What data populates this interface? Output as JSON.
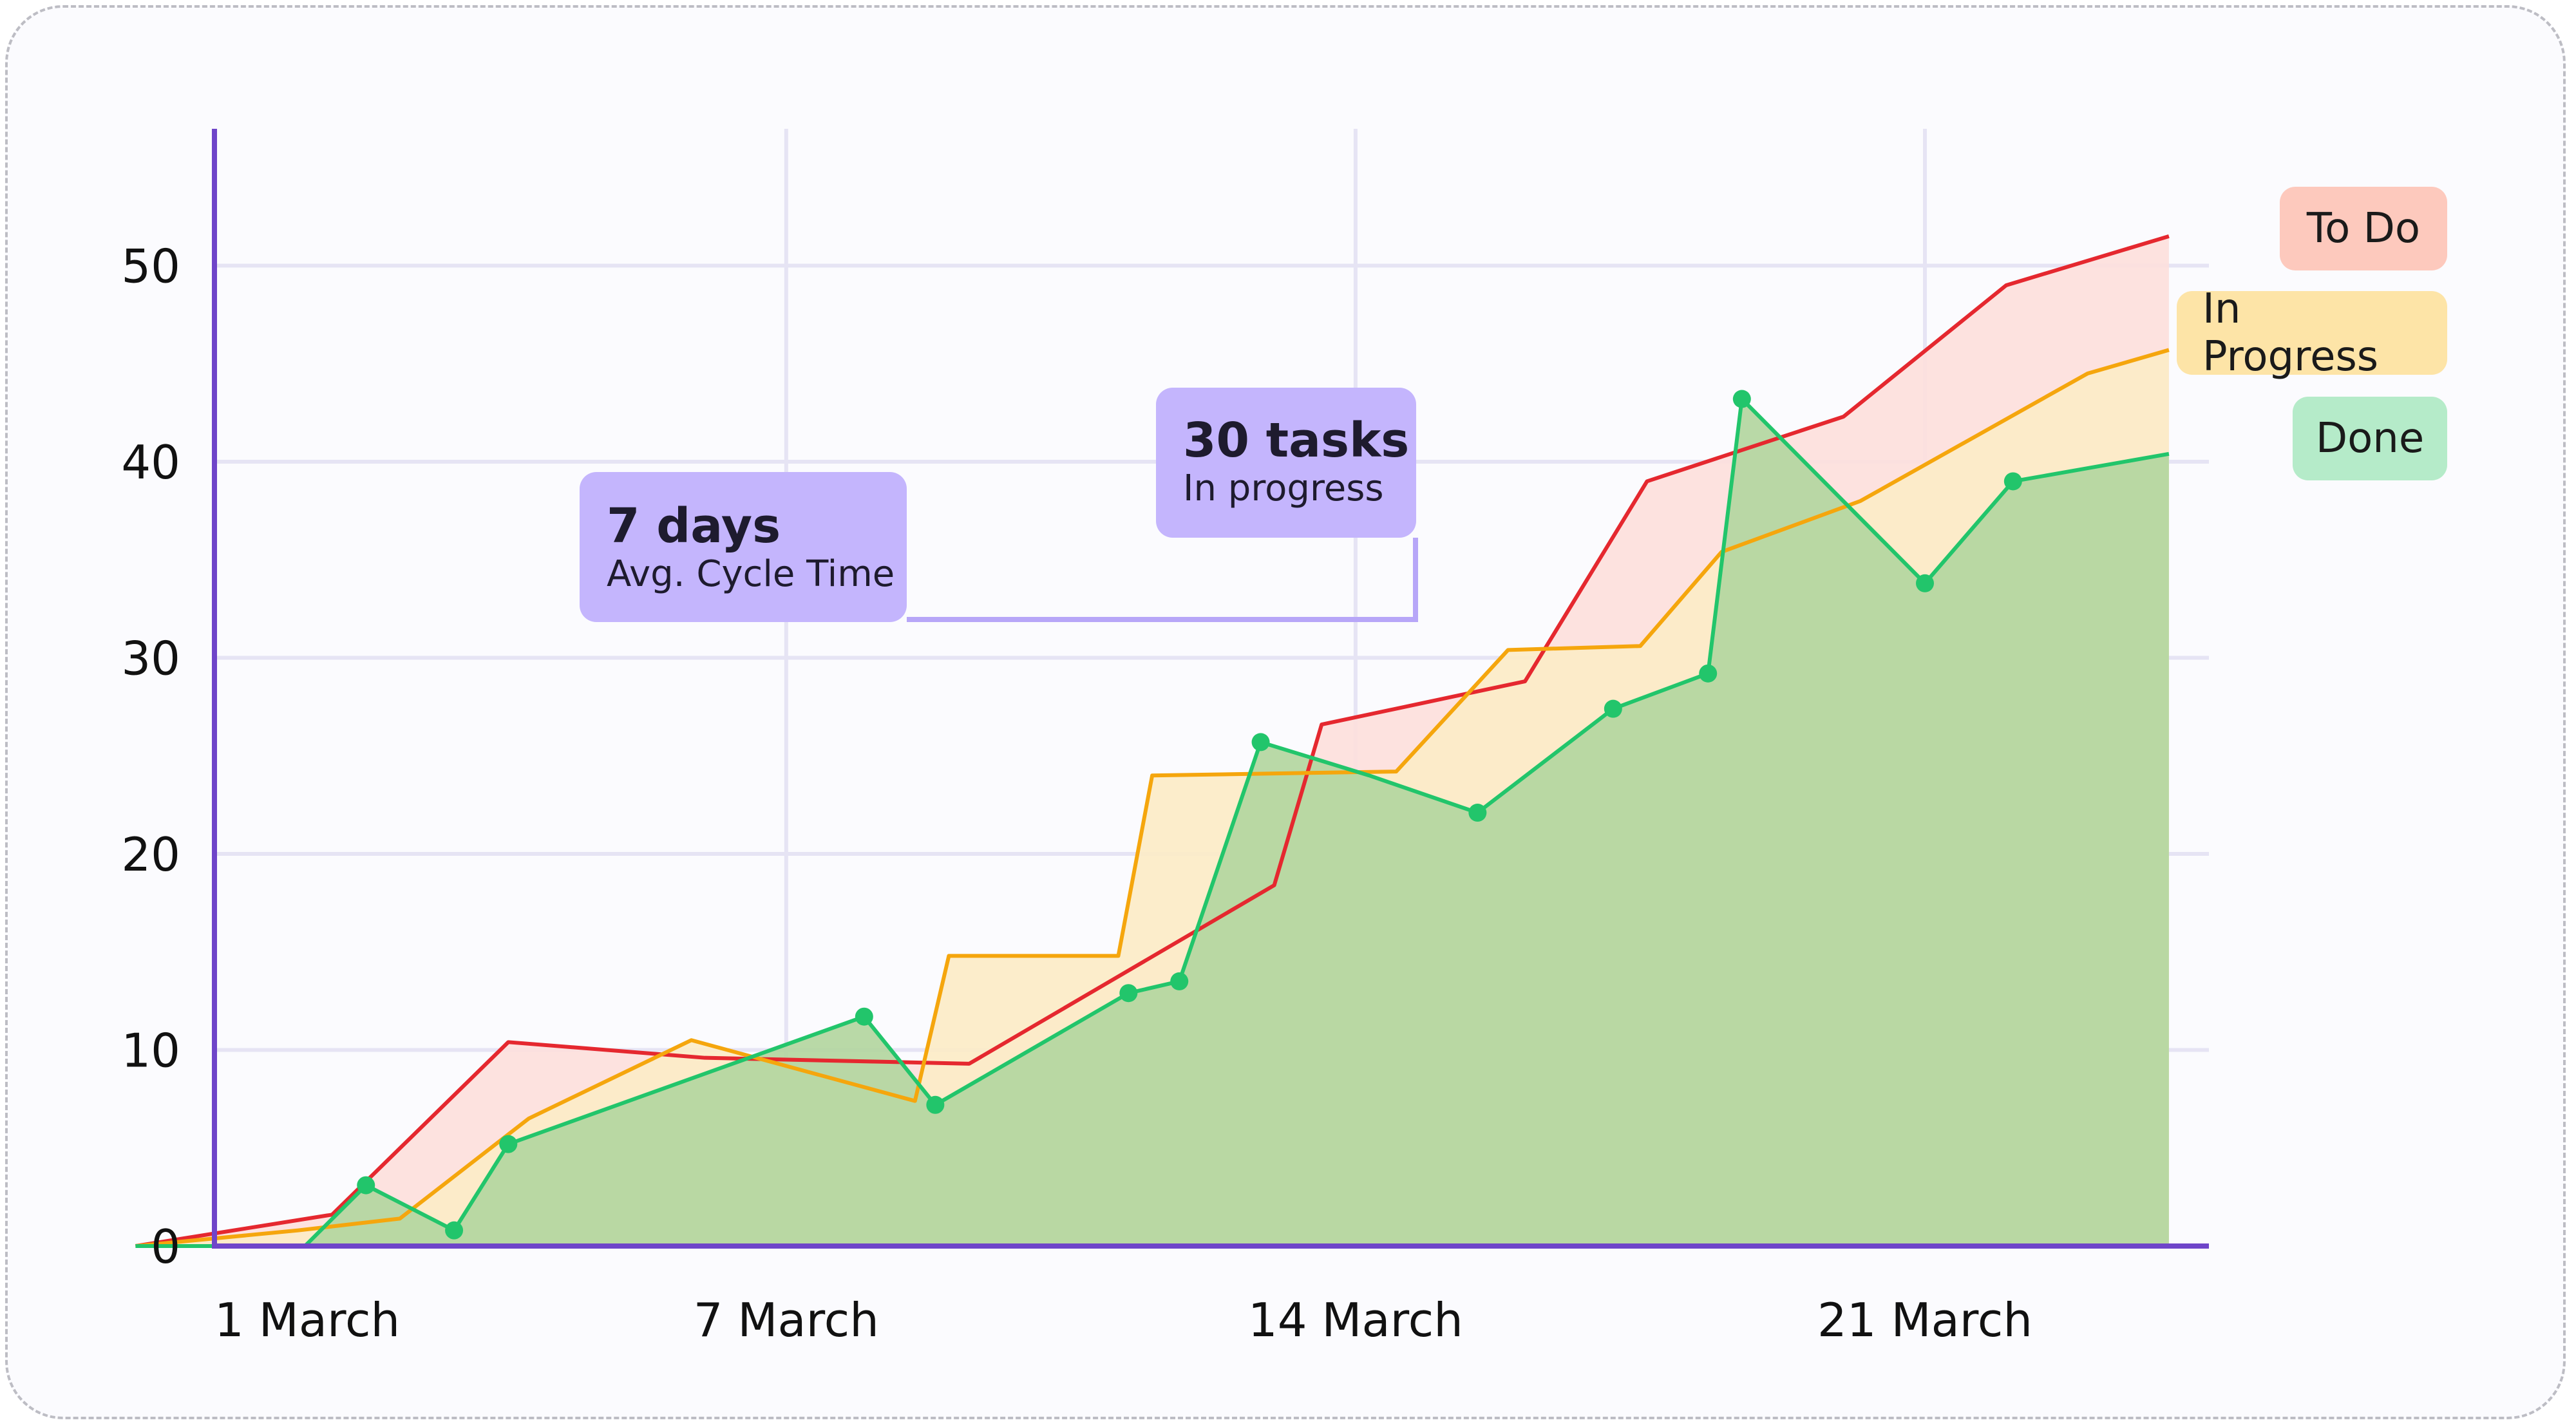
{
  "chart_data": {
    "type": "area",
    "title": "",
    "xlabel": "",
    "ylabel": "",
    "ylim": [
      0,
      57
    ],
    "xlim": [
      "2024-02-28",
      "2024-03-26"
    ],
    "yticks": [
      0,
      10,
      20,
      30,
      40,
      50
    ],
    "xticks": [
      {
        "label": "1 March",
        "x": "2024-03-01"
      },
      {
        "label": "7 March",
        "x": "2024-03-07"
      },
      {
        "label": "14 March",
        "x": "2024-03-14"
      },
      {
        "label": "21 March",
        "x": "2024-03-21"
      }
    ],
    "grid": true,
    "legend": "top-right",
    "series": [
      {
        "name": "To Do",
        "color": "#e5282f",
        "fill": "#fde0dc",
        "points": [
          [
            "2024-02-28",
            0
          ],
          [
            "2024-03-01T10:00",
            1.6
          ],
          [
            "2024-03-03T14:00",
            10.4
          ],
          [
            "2024-03-06",
            9.6
          ],
          [
            "2024-03-09T06:00",
            9.3
          ],
          [
            "2024-03-13",
            18.4
          ],
          [
            "2024-03-13T14:00",
            26.6
          ],
          [
            "2024-03-16T02:00",
            28.8
          ],
          [
            "2024-03-17T14:00",
            39.0
          ],
          [
            "2024-03-20",
            42.3
          ],
          [
            "2024-03-22",
            49.0
          ],
          [
            "2024-03-24",
            51.5
          ]
        ]
      },
      {
        "name": "In Progress",
        "color": "#f5a60d",
        "fill": "#fcebc7",
        "points": [
          [
            "2024-02-28",
            0
          ],
          [
            "2024-03-01",
            0.8
          ],
          [
            "2024-03-02T06:00",
            1.4
          ],
          [
            "2024-03-03T20:00",
            6.5
          ],
          [
            "2024-03-05T20:00",
            10.5
          ],
          [
            "2024-03-08T14:00",
            7.4
          ],
          [
            "2024-03-09",
            14.8
          ],
          [
            "2024-03-11T02:00",
            14.8
          ],
          [
            "2024-03-11T12:00",
            24.0
          ],
          [
            "2024-03-14T12:00",
            24.2
          ],
          [
            "2024-03-15T21:00",
            30.4
          ],
          [
            "2024-03-17T12:00",
            30.6
          ],
          [
            "2024-03-18T12:00",
            35.4
          ],
          [
            "2024-03-20T05:00",
            38.0
          ],
          [
            "2024-03-23",
            44.5
          ],
          [
            "2024-03-24",
            45.7
          ]
        ]
      },
      {
        "name": "Done",
        "color": "#22c56b",
        "fill": "#b3d6a0",
        "points": [
          [
            "2024-02-28",
            0
          ],
          [
            "2024-03-01T02:00",
            0
          ],
          [
            "2024-03-01T20:00",
            3.1
          ],
          [
            "2024-03-02T22:00",
            0.8
          ],
          [
            "2024-03-03T14:00",
            5.2
          ],
          [
            "2024-03-07T23:00",
            11.7
          ],
          [
            "2024-03-08T20:00",
            7.2
          ],
          [
            "2024-03-11T05:00",
            12.9
          ],
          [
            "2024-03-11T20:00",
            13.5
          ],
          [
            "2024-03-12T20:00",
            25.7
          ],
          [
            "2024-03-14T04:00",
            24.0
          ],
          [
            "2024-03-15T12:00",
            22.1
          ],
          [
            "2024-03-17T04:00",
            27.4
          ],
          [
            "2024-03-18T08:00",
            29.2
          ],
          [
            "2024-03-18T18:00",
            43.2
          ],
          [
            "2024-03-21",
            33.8
          ],
          [
            "2024-03-22T02:00",
            39.0
          ],
          [
            "2024-03-24",
            40.4
          ]
        ],
        "markers": [
          [
            "2024-03-01T20:00",
            3.1
          ],
          [
            "2024-03-02T22:00",
            0.8
          ],
          [
            "2024-03-03T14:00",
            5.2
          ],
          [
            "2024-03-07T23:00",
            11.7
          ],
          [
            "2024-03-08T20:00",
            7.2
          ],
          [
            "2024-03-11T05:00",
            12.9
          ],
          [
            "2024-03-11T20:00",
            13.5
          ],
          [
            "2024-03-12T20:00",
            25.7
          ],
          [
            "2024-03-15T12:00",
            22.1
          ],
          [
            "2024-03-17T04:00",
            27.4
          ],
          [
            "2024-03-18T08:00",
            29.2
          ],
          [
            "2024-03-18T18:00",
            43.2
          ],
          [
            "2024-03-21",
            33.8
          ],
          [
            "2024-03-22T02:00",
            39.0
          ]
        ]
      }
    ],
    "annotations": [
      {
        "value": "7 days",
        "label": "Avg. Cycle Time"
      },
      {
        "value": "30 tasks",
        "label": "In progress"
      }
    ]
  },
  "colors": {
    "axis": "#6f45c9",
    "grid": "#e6e4f4",
    "callout": "#c4b5fd"
  }
}
